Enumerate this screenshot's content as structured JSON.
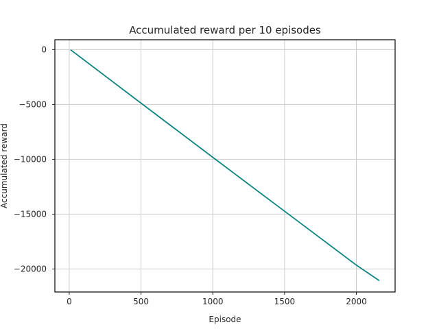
{
  "chart_data": {
    "type": "line",
    "title": "Accumulated reward per 10 episodes",
    "xlabel": "Episode",
    "ylabel": "Accumulated reward",
    "xlim": [
      -100,
      2270
    ],
    "ylim": [
      -22100,
      900
    ],
    "xticks": [
      0,
      500,
      1000,
      1500,
      2000
    ],
    "yticks": [
      0,
      -5000,
      -10000,
      -15000,
      -20000
    ],
    "xtick_labels": [
      "0",
      "500",
      "1000",
      "1500",
      "2000"
    ],
    "ytick_labels": [
      "0",
      "−5000",
      "−10000",
      "−15000",
      "−20000"
    ],
    "grid": true,
    "line_color": "#0b8381",
    "series": [
      {
        "x": [
          10,
          500,
          1000,
          1500,
          2000,
          2160
        ],
        "y": [
          -20,
          -4880,
          -9820,
          -14740,
          -19650,
          -21070
        ]
      }
    ]
  }
}
